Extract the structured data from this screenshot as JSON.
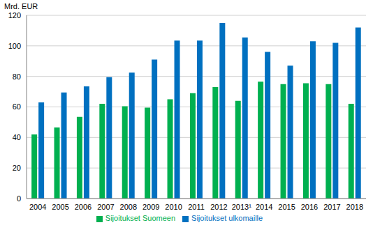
{
  "chart_data": {
    "type": "bar",
    "y_label": "Mrd. EUR",
    "categories": [
      "2004",
      "2005",
      "2006",
      "2007",
      "2008",
      "2009",
      "2010",
      "2011",
      "2012",
      "2013¹",
      "2014",
      "2015",
      "2016",
      "2017",
      "2018"
    ],
    "series": [
      {
        "name": "Sijoitukset Suomeen",
        "color": "#00b050",
        "values": [
          42,
          46.5,
          53.5,
          62,
          60.5,
          59.5,
          65,
          69,
          73,
          64,
          76.5,
          75,
          75.5,
          75,
          62
        ]
      },
      {
        "name": "Sijoitukset ulkomaille",
        "color": "#0070c0",
        "values": [
          63,
          69.5,
          73.5,
          79.5,
          82.5,
          91,
          103.5,
          103.5,
          115,
          105.5,
          96,
          87,
          103,
          102,
          112
        ]
      }
    ],
    "ylim": [
      0,
      120
    ],
    "yticks": [
      0,
      20,
      40,
      60,
      80,
      100,
      120
    ],
    "grid": true,
    "legend": "bottom"
  }
}
